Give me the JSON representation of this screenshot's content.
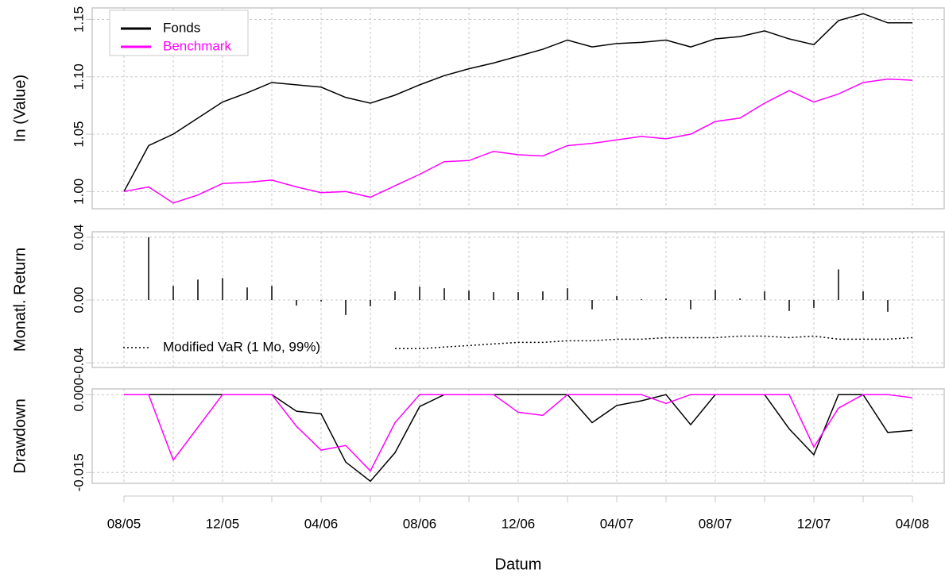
{
  "chart_data": [
    {
      "type": "line",
      "ylabel": "In (Value)",
      "ylim": [
        0.985,
        1.16
      ],
      "yticks": [
        {
          "value": 1.0,
          "label": "1.00"
        },
        {
          "value": 1.05,
          "label": "1.05"
        },
        {
          "value": 1.1,
          "label": "1.10"
        },
        {
          "value": 1.15,
          "label": "1.15"
        }
      ],
      "grid": true,
      "legend": "top-left",
      "series": [
        {
          "name": "Fonds",
          "color": "#000000",
          "values": [
            1.0,
            1.04,
            1.05,
            1.064,
            1.078,
            1.086,
            1.095,
            1.093,
            1.091,
            1.082,
            1.077,
            1.084,
            1.093,
            1.101,
            1.107,
            1.112,
            1.118,
            1.124,
            1.132,
            1.126,
            1.129,
            1.13,
            1.132,
            1.126,
            1.133,
            1.135,
            1.14,
            1.133,
            1.128,
            1.149,
            1.155,
            1.147,
            1.147
          ]
        },
        {
          "name": "Benchmark",
          "color": "#ff00ff",
          "values": [
            1.0,
            1.004,
            0.99,
            0.997,
            1.007,
            1.008,
            1.01,
            1.004,
            0.999,
            1.0,
            0.995,
            1.005,
            1.015,
            1.026,
            1.027,
            1.035,
            1.032,
            1.031,
            1.04,
            1.042,
            1.045,
            1.048,
            1.046,
            1.05,
            1.061,
            1.064,
            1.077,
            1.088,
            1.078,
            1.085,
            1.095,
            1.098,
            1.097
          ]
        }
      ]
    },
    {
      "type": "bar",
      "ylabel": "Monatl. Return",
      "ylim": [
        -0.043,
        0.0435
      ],
      "yticks": [
        {
          "value": -0.04,
          "label": "-0.04"
        },
        {
          "value": 0.0,
          "label": "0.00"
        },
        {
          "value": 0.04,
          "label": "0.04"
        }
      ],
      "grid": true,
      "legend": "bottom-left",
      "color": "#000000",
      "values": [
        null,
        0.04,
        0.009,
        0.013,
        0.014,
        0.008,
        0.009,
        -0.0035,
        -0.001,
        -0.0095,
        -0.004,
        0.0055,
        0.0085,
        0.0075,
        0.006,
        0.005,
        0.005,
        0.0055,
        0.0075,
        -0.006,
        0.0025,
        0.0005,
        0.001,
        -0.006,
        0.0065,
        0.001,
        0.0055,
        -0.007,
        -0.005,
        0.0195,
        0.0055,
        -0.0075,
        0.0
      ],
      "lines": [
        {
          "name": "Modified VaR (1 Mo, 99%)",
          "color": "#000000",
          "linestyle": "dotted",
          "values": [
            null,
            null,
            null,
            null,
            null,
            null,
            null,
            null,
            null,
            null,
            null,
            -0.031,
            -0.031,
            -0.03,
            -0.029,
            -0.028,
            -0.027,
            -0.027,
            -0.026,
            -0.026,
            -0.025,
            -0.025,
            -0.024,
            -0.024,
            -0.024,
            -0.023,
            -0.023,
            -0.024,
            -0.023,
            -0.025,
            -0.025,
            -0.025,
            -0.024
          ]
        }
      ]
    },
    {
      "type": "line",
      "ylabel": "Drawdown",
      "xlabel": "Datum",
      "ylim": [
        -0.0171,
        0.0011
      ],
      "yticks": [
        {
          "value": -0.015,
          "label": "-0.015"
        },
        {
          "value": 0.0,
          "label": "0.000"
        }
      ],
      "grid": true,
      "categories": [
        "08/05",
        null,
        null,
        null,
        "12/05",
        null,
        null,
        null,
        "04/06",
        null,
        null,
        null,
        "08/06",
        null,
        null,
        null,
        "12/06",
        null,
        null,
        null,
        "04/07",
        null,
        null,
        null,
        "08/07",
        null,
        null,
        null,
        "12/07",
        null,
        null,
        null,
        "04/08"
      ],
      "series": [
        {
          "color": "#000000",
          "values": [
            0,
            0,
            0,
            0,
            0,
            0,
            0,
            -0.0032,
            -0.0037,
            -0.013,
            -0.0167,
            -0.0112,
            -0.0023,
            0,
            0,
            0,
            0,
            0,
            0,
            -0.0054,
            -0.0021,
            -0.0012,
            0,
            -0.0058,
            0,
            0,
            0,
            -0.0066,
            -0.0116,
            0,
            0,
            -0.0073,
            -0.0069
          ]
        },
        {
          "color": "#ff00ff",
          "values": [
            0,
            0,
            -0.0126,
            -0.0063,
            0,
            0,
            0,
            -0.0061,
            -0.0107,
            -0.0098,
            -0.0147,
            -0.0054,
            0,
            0,
            0,
            0,
            -0.0034,
            -0.004,
            0,
            0,
            0,
            0,
            -0.0017,
            0,
            0,
            0,
            0,
            0,
            -0.0101,
            -0.0026,
            0,
            0,
            -0.0006
          ]
        }
      ]
    }
  ]
}
